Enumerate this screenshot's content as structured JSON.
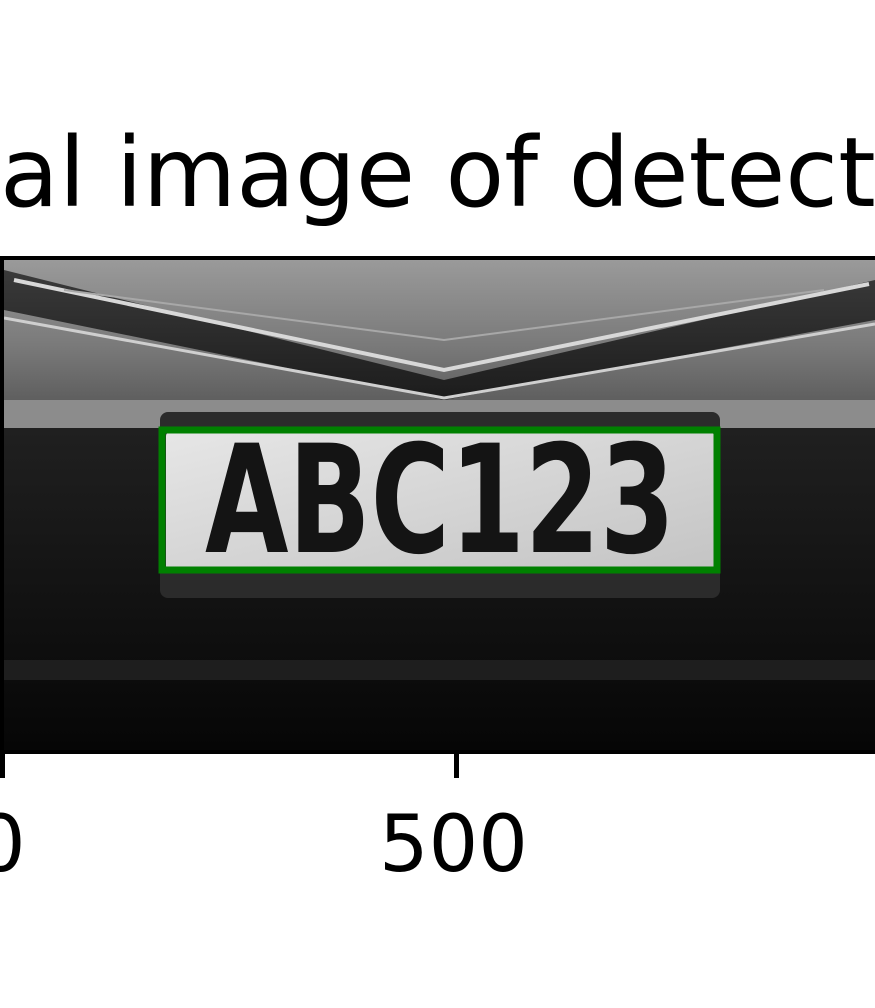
{
  "figure": {
    "title": "al image of detect",
    "x_ticks": [
      "0",
      "500"
    ]
  },
  "plate": {
    "text": "ABC123",
    "box_color": "#008000"
  },
  "colors": {
    "frame": "#000000",
    "background": "#ffffff"
  }
}
